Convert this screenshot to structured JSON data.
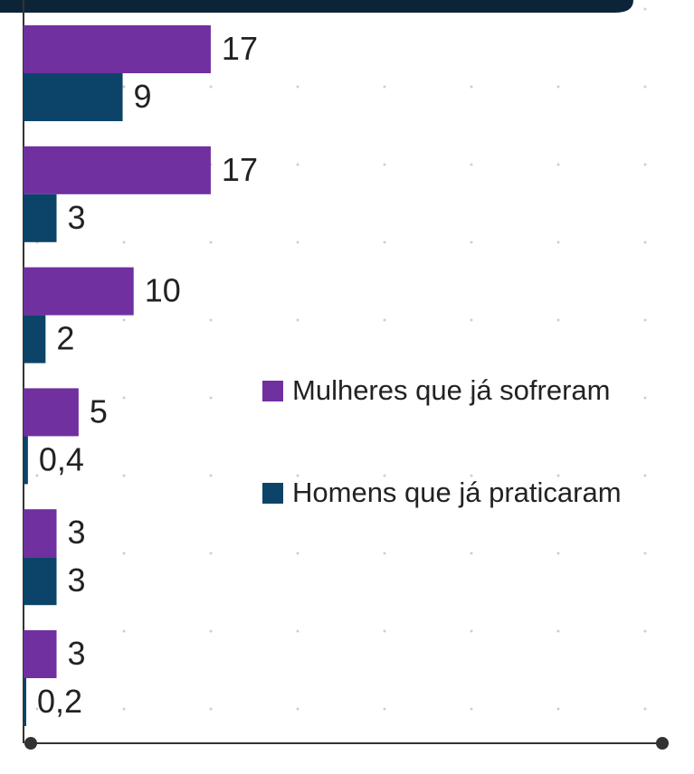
{
  "chart_data": {
    "type": "bar",
    "orientation": "horizontal",
    "categories": [
      null,
      null,
      null,
      null,
      null,
      null
    ],
    "series": [
      {
        "name": "Mulheres que já sofreram",
        "color": "#7030a0",
        "values": [
          17,
          17,
          10,
          5,
          3,
          3
        ]
      },
      {
        "name": "Homens que já praticaram",
        "color": "#0b4468",
        "values": [
          9,
          3,
          2,
          0.4,
          3,
          0.2
        ],
        "value_labels": [
          "9",
          "3",
          "2",
          "0,4",
          "3",
          "0,2"
        ]
      }
    ],
    "xlim": [
      0,
      58
    ],
    "legend": "right"
  }
}
